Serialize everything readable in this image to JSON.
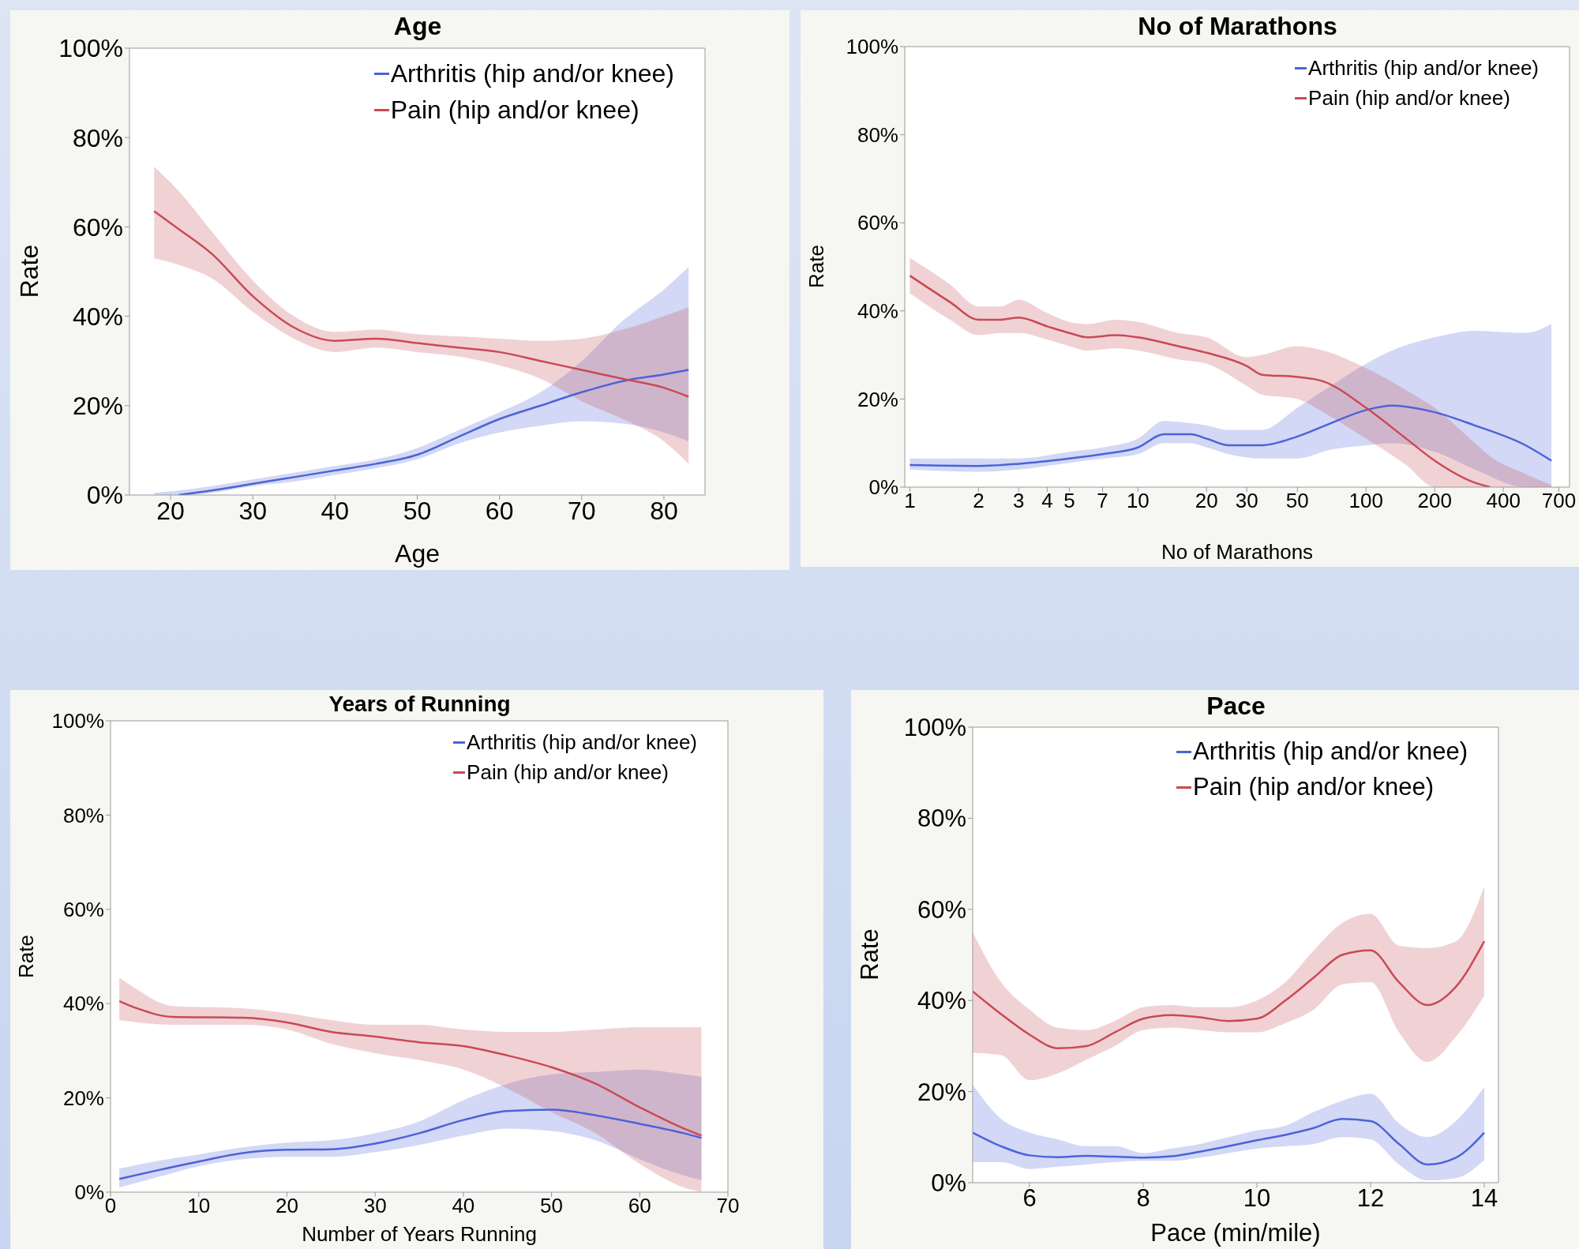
{
  "chart_data": [
    {
      "type": "line",
      "title": "Age",
      "xlabel": "Age",
      "ylabel": "Rate",
      "xlim": [
        15,
        85
      ],
      "xticks": [
        20,
        30,
        40,
        50,
        60,
        70,
        80
      ],
      "ylim": [
        0,
        100
      ],
      "yticks": [
        {
          "value": 0,
          "label": "0%"
        },
        {
          "value": 20,
          "label": "20%"
        },
        {
          "value": 40,
          "label": "40%"
        },
        {
          "value": 60,
          "label": "60%"
        },
        {
          "value": 80,
          "label": "80%"
        },
        {
          "value": 100,
          "label": "100%"
        }
      ],
      "legend": "top right",
      "series": [
        {
          "name": "Arthritis (hip and/or knee)",
          "color": "#4b63d8",
          "x": [
            18,
            21,
            25,
            30,
            35,
            40,
            45,
            50,
            55,
            60,
            65,
            70,
            75,
            80,
            83
          ],
          "values": [
            null,
            0,
            1,
            2.5,
            4,
            5.5,
            7,
            9,
            13,
            17,
            20,
            23,
            25.5,
            27,
            28
          ],
          "lower": [
            0,
            0,
            0.5,
            2,
            3,
            4.5,
            6,
            8,
            11.5,
            14,
            15.5,
            16.5,
            16,
            14,
            12
          ],
          "upper": [
            0.5,
            1,
            2,
            3.5,
            5,
            6.5,
            8,
            10.5,
            14.5,
            18.5,
            23,
            30,
            39,
            46,
            51
          ]
        },
        {
          "name": "Pain (hip and/or knee)",
          "color": "#c94a55",
          "x": [
            18,
            21,
            25,
            30,
            35,
            40,
            45,
            50,
            55,
            60,
            65,
            70,
            75,
            80,
            83
          ],
          "values": [
            63.5,
            59.5,
            54,
            44.5,
            37.5,
            34.5,
            35,
            34,
            33,
            32,
            30,
            28,
            26,
            24,
            22
          ],
          "lower": [
            53,
            51.5,
            48.5,
            41,
            35,
            32,
            33,
            32,
            31,
            29,
            26,
            21,
            17,
            12,
            7
          ],
          "upper": [
            73.5,
            68,
            59,
            48,
            40,
            36.5,
            37,
            36,
            35.5,
            35,
            34.5,
            35,
            37,
            40,
            42
          ]
        }
      ]
    },
    {
      "type": "line",
      "title": "No of Marathons",
      "xlabel": "No of Marathons",
      "ylabel": "Rate",
      "log": "x",
      "xlim": [
        0.95,
        780
      ],
      "xticks": [
        1,
        2,
        3,
        4,
        5,
        7,
        10,
        20,
        30,
        50,
        100,
        200,
        400,
        700
      ],
      "ylim": [
        0,
        100
      ],
      "yticks": [
        {
          "value": 0,
          "label": "0%"
        },
        {
          "value": 20,
          "label": "20%"
        },
        {
          "value": 40,
          "label": "40%"
        },
        {
          "value": 60,
          "label": "60%"
        },
        {
          "value": 80,
          "label": "80%"
        },
        {
          "value": 100,
          "label": "100%"
        }
      ],
      "legend": "top right",
      "series": [
        {
          "name": "Arthritis (hip and/or knee)",
          "color": "#4b63d8",
          "x": [
            1,
            2,
            3,
            5,
            7,
            10,
            13,
            17,
            20,
            25,
            35,
            50,
            70,
            100,
            130,
            200,
            300,
            500,
            650
          ],
          "values": [
            5,
            4.8,
            5.3,
            6.5,
            7.5,
            9,
            12,
            12,
            11,
            9.5,
            9.5,
            11.5,
            14.5,
            17.5,
            18.5,
            17,
            14,
            9.5,
            6
          ],
          "lower": [
            4,
            3.5,
            4,
            5.5,
            6.5,
            7.5,
            10,
            10,
            9,
            7.5,
            6.5,
            6.5,
            8.5,
            9.5,
            10,
            8,
            4,
            0,
            0
          ],
          "upper": [
            6.5,
            6.5,
            6.5,
            8,
            9,
            11,
            15,
            14.5,
            14,
            13,
            13,
            18,
            23,
            28,
            31,
            34,
            35.5,
            35,
            37
          ]
        },
        {
          "name": "Pain (hip and/or knee)",
          "color": "#c94a55",
          "x": [
            1,
            1.5,
            2,
            2.5,
            3,
            4,
            5,
            6,
            8,
            10,
            15,
            20,
            30,
            35,
            50,
            65,
            100,
            150,
            200,
            300,
            350,
            500,
            650
          ],
          "values": [
            48,
            42,
            38,
            38,
            38.5,
            36.5,
            35,
            34,
            34.5,
            34,
            32,
            30.5,
            27.5,
            25.5,
            25,
            24,
            18,
            11,
            6,
            1,
            0,
            null,
            null
          ],
          "lower": [
            44,
            38,
            34.5,
            35,
            35,
            33.5,
            32,
            31,
            31.5,
            31,
            29,
            28,
            23,
            21,
            20,
            17,
            11,
            5,
            0,
            0,
            0,
            0,
            0
          ],
          "upper": [
            52,
            46,
            41,
            41,
            42.5,
            39.5,
            37.5,
            37,
            38,
            37.5,
            35,
            34,
            29.5,
            30,
            32,
            31,
            27,
            22,
            18,
            10,
            7,
            3,
            0.5
          ]
        }
      ]
    },
    {
      "type": "line",
      "title": "Years of Running",
      "xlabel": "Number of Years Running",
      "ylabel": "Rate",
      "xlim": [
        0,
        70
      ],
      "xticks": [
        0,
        10,
        20,
        30,
        40,
        50,
        60,
        70
      ],
      "ylim": [
        0,
        100
      ],
      "yticks": [
        {
          "value": 0,
          "label": "0%"
        },
        {
          "value": 20,
          "label": "20%"
        },
        {
          "value": 40,
          "label": "40%"
        },
        {
          "value": 60,
          "label": "60%"
        },
        {
          "value": 80,
          "label": "80%"
        },
        {
          "value": 100,
          "label": "100%"
        }
      ],
      "legend": "top right",
      "series": [
        {
          "name": "Arthritis (hip and/or knee)",
          "color": "#4b63d8",
          "x": [
            1,
            5,
            10,
            15,
            20,
            25,
            30,
            35,
            40,
            45,
            50,
            55,
            60,
            65,
            67
          ],
          "values": [
            2.8,
            4.5,
            6.5,
            8.3,
            9,
            9.1,
            10.3,
            12.5,
            15.3,
            17.2,
            17.5,
            16.3,
            14.5,
            12.5,
            11.5
          ],
          "lower": [
            1,
            3,
            5.5,
            7,
            7.5,
            7.5,
            8.5,
            10,
            12,
            13.5,
            13,
            11,
            7,
            3.5,
            2.5
          ],
          "upper": [
            5,
            6.5,
            8,
            9.5,
            10.5,
            11,
            12.5,
            15,
            19.5,
            23,
            25,
            25.5,
            26,
            25,
            24.5
          ]
        },
        {
          "name": "Pain (hip and/or knee)",
          "color": "#c94a55",
          "x": [
            1,
            3,
            7,
            15,
            20,
            25,
            30,
            35,
            40,
            45,
            50,
            55,
            60,
            65,
            67
          ],
          "values": [
            40.5,
            39,
            37.2,
            37,
            36,
            34,
            33,
            31.8,
            31,
            29,
            26.5,
            23,
            18,
            13.5,
            12
          ],
          "lower": [
            36.5,
            36,
            35.5,
            35.5,
            34.5,
            31.5,
            29.5,
            28,
            26,
            22,
            17,
            12.5,
            6,
            1,
            0
          ],
          "upper": [
            45.5,
            43,
            39.5,
            39,
            38,
            36.5,
            35.5,
            35.5,
            34.5,
            34,
            34,
            34.5,
            35,
            35,
            35
          ]
        }
      ]
    },
    {
      "type": "line",
      "title": "Pace",
      "xlabel": "Pace (min/mile)",
      "ylabel": "Rate",
      "xlim": [
        5,
        14.25
      ],
      "xticks": [
        6,
        8,
        10,
        12,
        14
      ],
      "ylim": [
        0,
        100
      ],
      "yticks": [
        {
          "value": 0,
          "label": "0%"
        },
        {
          "value": 20,
          "label": "20%"
        },
        {
          "value": 40,
          "label": "40%"
        },
        {
          "value": 60,
          "label": "60%"
        },
        {
          "value": 80,
          "label": "80%"
        },
        {
          "value": 100,
          "label": "100%"
        }
      ],
      "legend": "top right",
      "series": [
        {
          "name": "Arthritis (hip and/or knee)",
          "color": "#4b63d8",
          "x": [
            5,
            5.5,
            6,
            6.5,
            7,
            7.5,
            8,
            8.5,
            9,
            9.5,
            10,
            10.5,
            11,
            11.5,
            12,
            12.5,
            13,
            13.5,
            14
          ],
          "values": [
            11,
            8,
            6,
            5.6,
            5.9,
            5.7,
            5.5,
            5.8,
            6.8,
            8,
            9.3,
            10.5,
            12,
            14,
            13.5,
            8.5,
            4,
            5.5,
            11
          ],
          "lower": [
            4.5,
            4.5,
            3,
            3.5,
            4,
            4.5,
            4.8,
            4.8,
            5.5,
            6.5,
            7.5,
            8,
            8.5,
            10,
            9.5,
            4,
            0.5,
            1,
            5
          ],
          "upper": [
            21.5,
            14,
            11,
            9.5,
            8,
            8,
            6.5,
            7.5,
            8.5,
            10,
            11.5,
            12.5,
            15.5,
            18,
            19.5,
            13,
            10,
            13.5,
            21
          ]
        },
        {
          "name": "Pain (hip and/or knee)",
          "color": "#c94a55",
          "x": [
            5,
            5.5,
            6,
            6.5,
            7,
            7.5,
            8,
            8.5,
            9,
            9.5,
            10,
            10.5,
            11,
            11.5,
            12,
            12.5,
            13,
            13.5,
            14
          ],
          "values": [
            42,
            37,
            32.5,
            29.5,
            30,
            33,
            36,
            36.8,
            36.3,
            35.5,
            36,
            40,
            45,
            50,
            51,
            44,
            39,
            43,
            53
          ],
          "lower": [
            28.5,
            28,
            22.5,
            24,
            27,
            30,
            33.5,
            34,
            33.5,
            33,
            33,
            35,
            38,
            43.5,
            44,
            33,
            26.5,
            32,
            41
          ],
          "upper": [
            55,
            44,
            38,
            34,
            33.5,
            35.5,
            38.5,
            39,
            38.5,
            38.5,
            40,
            44,
            51,
            57,
            59,
            52,
            51.5,
            53,
            65
          ]
        }
      ]
    }
  ]
}
